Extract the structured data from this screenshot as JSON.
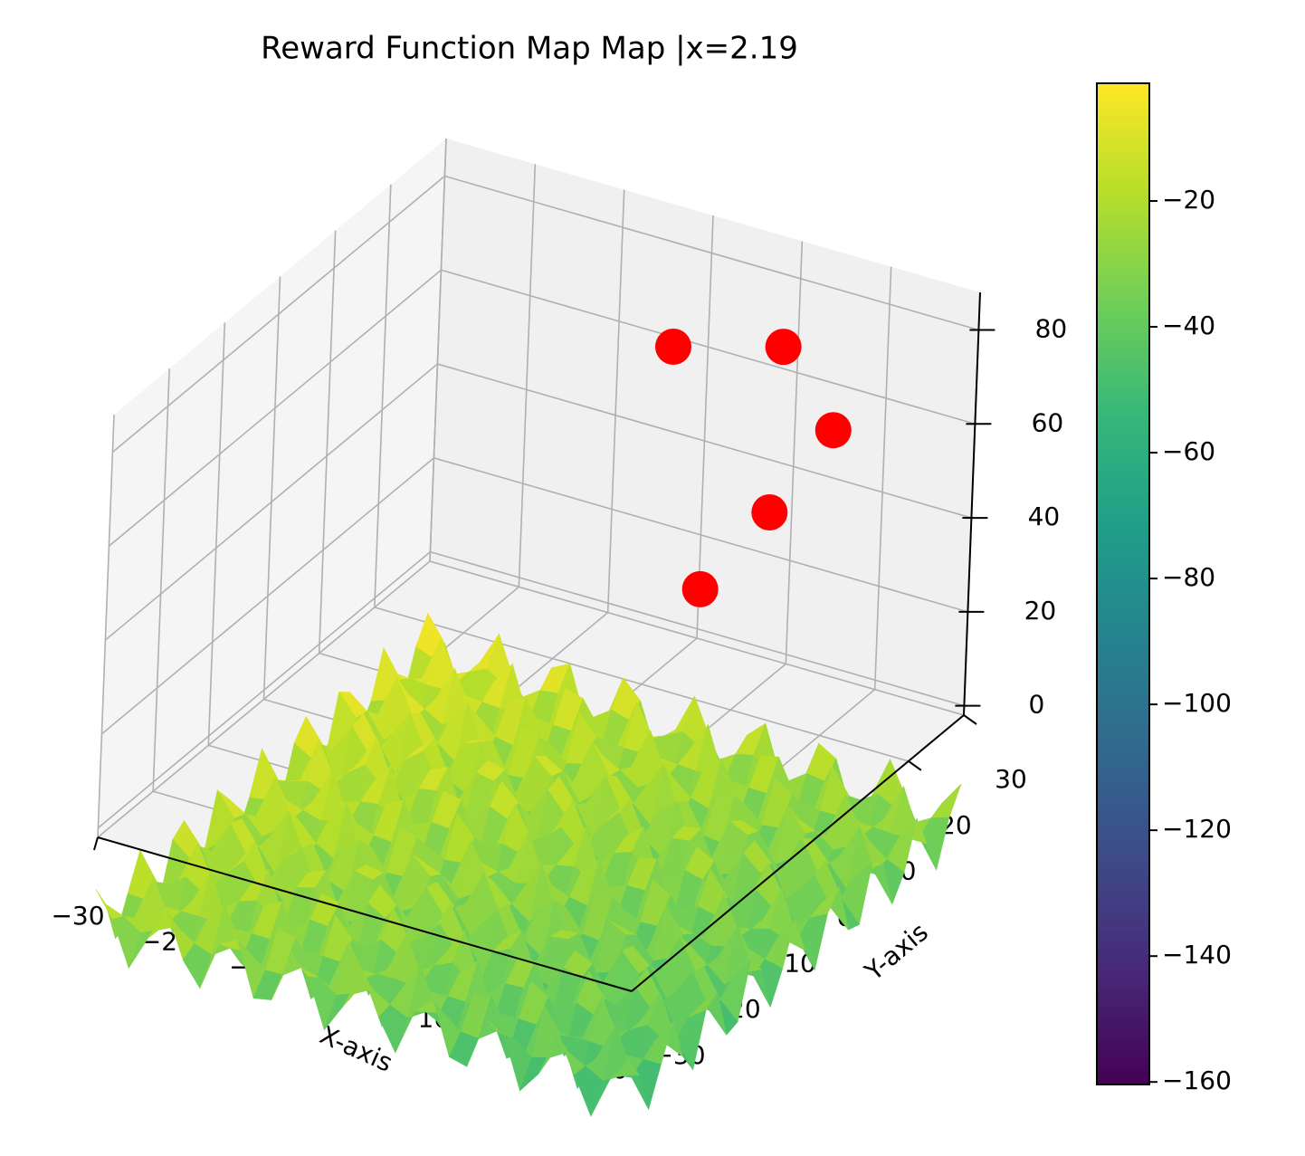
{
  "chart_data": {
    "type": "scatter3d",
    "title": "Reward Function Map Map |x=2.19",
    "xlabel": "X-axis",
    "ylabel": "Y-axis",
    "x": [
      6.2,
      15.4,
      18.8,
      12.6,
      5.4
    ],
    "y": [
      13.1,
      18.2,
      22.4,
      21.5,
      21.2
    ],
    "z": [
      80,
      80,
      60,
      40,
      20
    ],
    "color": "#ff0000",
    "xlim": [
      -30,
      30
    ],
    "ylim": [
      -30,
      30
    ],
    "zlim": [
      -2,
      88
    ],
    "xticks": [
      {
        "value": -30,
        "label": "−30"
      },
      {
        "value": -20,
        "label": "−20"
      },
      {
        "value": -10,
        "label": "−10"
      },
      0,
      10,
      20,
      30
    ],
    "yticks": [
      {
        "value": -30,
        "label": "−30"
      },
      {
        "value": -20,
        "label": "−20"
      },
      {
        "value": -10,
        "label": "−10"
      },
      0,
      10,
      20,
      30
    ],
    "zticks": [
      0,
      20,
      40,
      60,
      80
    ],
    "colormap": "viridis",
    "clim": [
      -160.4,
      -1.3
    ],
    "cticks": [
      {
        "value": -20,
        "label": "−20"
      },
      {
        "value": -40,
        "label": "−40"
      },
      {
        "value": -60,
        "label": "−60"
      },
      {
        "value": -80,
        "label": "−80"
      },
      {
        "value": -100,
        "label": "−100"
      },
      {
        "value": -120,
        "label": "−120"
      },
      {
        "value": -140,
        "label": "−140"
      },
      {
        "value": -160,
        "label": "−160"
      }
    ],
    "grid": true
  }
}
